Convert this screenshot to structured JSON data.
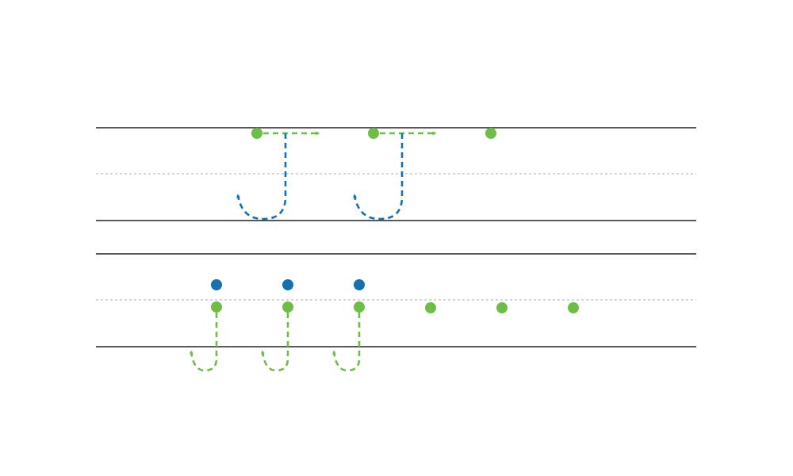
{
  "colors": {
    "green": "#6cbf44",
    "blue": "#1570b0",
    "rule": "#222222",
    "midline": "#bdbdbd"
  },
  "diagram": {
    "type": "handwriting-stroke-guide",
    "staves": [
      {
        "id": "upper",
        "dots": [
          {
            "color": "green"
          },
          {
            "color": "green"
          },
          {
            "color": "green"
          }
        ],
        "strokes": [
          {
            "kind": "right-arrow",
            "color": "green"
          },
          {
            "kind": "down-hook-up",
            "color": "blue"
          },
          {
            "kind": "right-arrow",
            "color": "green"
          },
          {
            "kind": "down-hook-up",
            "color": "blue"
          }
        ]
      },
      {
        "id": "lower",
        "dots": [
          {
            "color": "blue"
          },
          {
            "color": "blue"
          },
          {
            "color": "blue"
          },
          {
            "color": "green"
          },
          {
            "color": "green"
          },
          {
            "color": "green"
          },
          {
            "color": "green"
          },
          {
            "color": "green"
          },
          {
            "color": "green"
          }
        ],
        "strokes": [
          {
            "kind": "down-hook-up",
            "color": "green"
          },
          {
            "kind": "down-hook-up",
            "color": "green"
          },
          {
            "kind": "down-hook-up",
            "color": "green"
          }
        ]
      }
    ]
  }
}
